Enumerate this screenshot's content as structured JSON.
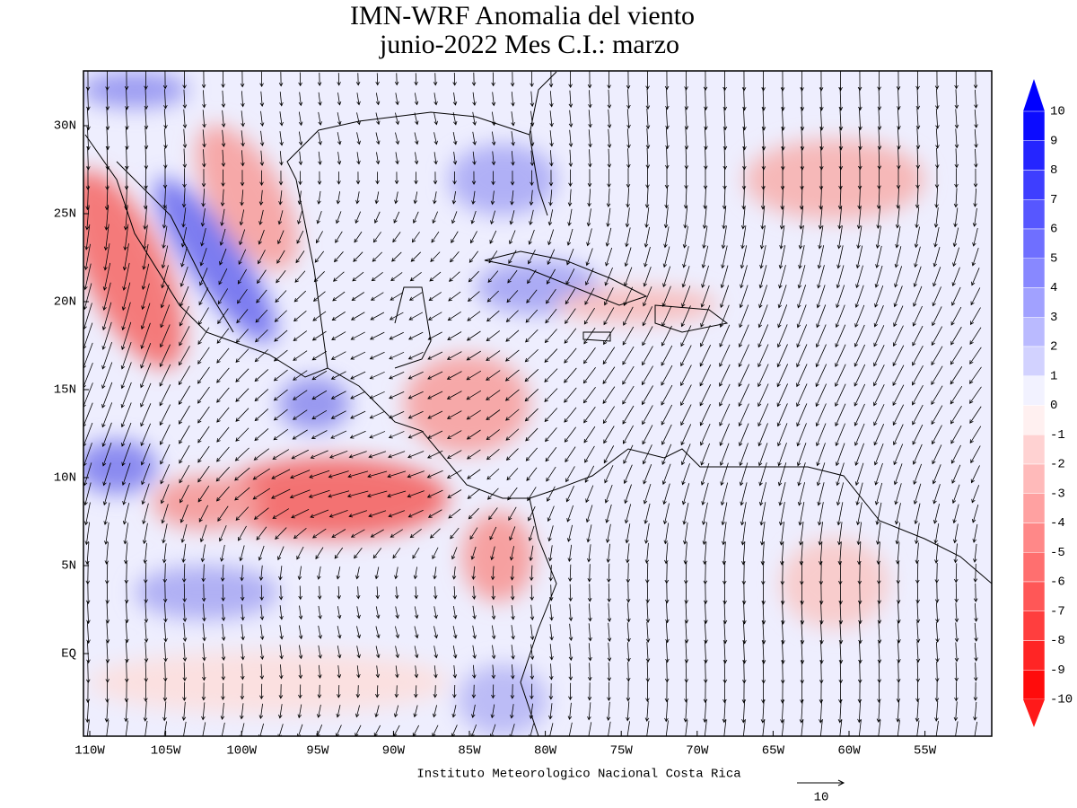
{
  "title": [
    "IMN-WRF Anomalia del viento",
    "junio-2022 Mes C.I.: marzo"
  ],
  "map": {
    "lon_labels": [
      "110W",
      "105W",
      "100W",
      "95W",
      "90W",
      "85W",
      "80W",
      "75W",
      "70W",
      "65W",
      "60W",
      "55W"
    ],
    "lat_labels": [
      "30N",
      "25N",
      "20N",
      "15N",
      "10N",
      "5N",
      "EQ"
    ]
  },
  "colorbar": {
    "labels": [
      "10",
      "9",
      "8",
      "7",
      "6",
      "5",
      "4",
      "3",
      "2",
      "1",
      "0",
      "-1",
      "-2",
      "-3",
      "-4",
      "-5",
      "-6",
      "-7",
      "-8",
      "-9",
      "-10"
    ]
  },
  "footer": "Instituto Meteorologico Nacional Costa Rica",
  "reference_vector": {
    "label": "10"
  }
}
